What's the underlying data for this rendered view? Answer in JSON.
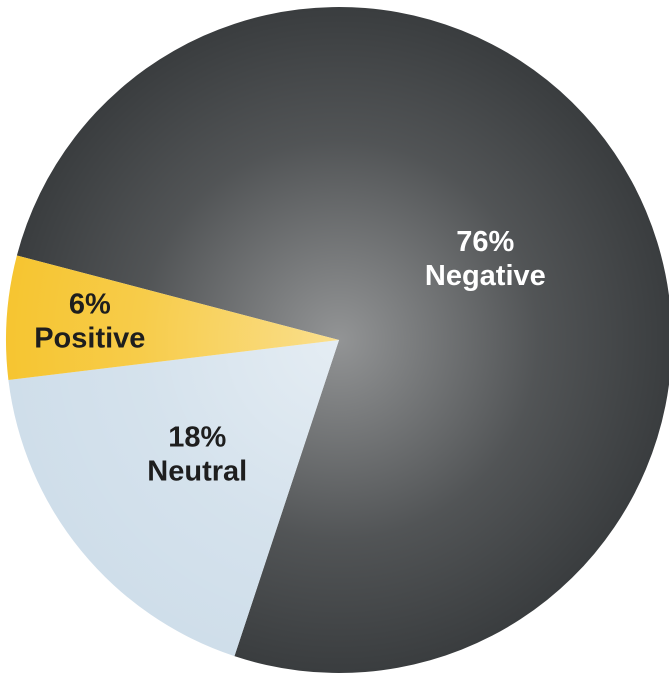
{
  "chart_data": {
    "type": "pie",
    "categories": [
      "Negative",
      "Neutral",
      "Positive"
    ],
    "values": [
      76,
      18,
      6
    ],
    "value_labels": [
      "76%",
      "18%",
      "6%"
    ],
    "colors": [
      "#3a3d3f",
      "#cfdeea",
      "#f6c531"
    ]
  }
}
